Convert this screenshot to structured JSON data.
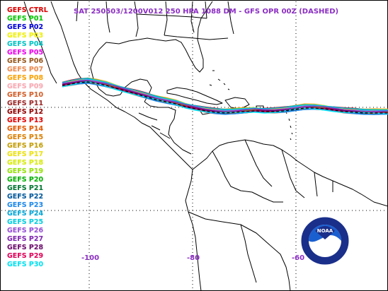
{
  "title": "SAT 250503/1200V012  250 HPA 1088 DM - GFS OPR 00Z (DASHED)",
  "colors": {
    "title": "#8b2ec4",
    "coastline": "#000000",
    "grid": "#000000",
    "lon_labels": "#8b2ec4",
    "opr": "#000000"
  },
  "legend": [
    {
      "label": "GEFS CTRL",
      "color": "#e00000"
    },
    {
      "label": "GEFS P01",
      "color": "#00cc00"
    },
    {
      "label": "GEFS P02",
      "color": "#0000e0"
    },
    {
      "label": "GEFS P03",
      "color": "#f5f500"
    },
    {
      "label": "GEFS P04",
      "color": "#00c8c8"
    },
    {
      "label": "GEFS P05",
      "color": "#f000f0"
    },
    {
      "label": "GEFS P06",
      "color": "#9a5a1e"
    },
    {
      "label": "GEFS P07",
      "color": "#f08c50"
    },
    {
      "label": "GEFS P08",
      "color": "#ffa500"
    },
    {
      "label": "GEFS P09",
      "color": "#ffaab4"
    },
    {
      "label": "GEFS P10",
      "color": "#d8602a"
    },
    {
      "label": "GEFS P11",
      "color": "#a02a2a"
    },
    {
      "label": "GEFS P12",
      "color": "#960000"
    },
    {
      "label": "GEFS P13",
      "color": "#e60000"
    },
    {
      "label": "GEFS P14",
      "color": "#e85a00"
    },
    {
      "label": "GEFS P15",
      "color": "#e08200"
    },
    {
      "label": "GEFS P16",
      "color": "#c8a000"
    },
    {
      "label": "GEFS P17",
      "color": "#f0e60a"
    },
    {
      "label": "GEFS P18",
      "color": "#dcf000"
    },
    {
      "label": "GEFS P19",
      "color": "#96e600"
    },
    {
      "label": "GEFS P20",
      "color": "#00b400"
    },
    {
      "label": "GEFS P21",
      "color": "#007832"
    },
    {
      "label": "GEFS P22",
      "color": "#005aa0"
    },
    {
      "label": "GEFS P23",
      "color": "#1e8cf0"
    },
    {
      "label": "GEFS P24",
      "color": "#00aadc"
    },
    {
      "label": "GEFS P25",
      "color": "#00d2e6"
    },
    {
      "label": "GEFS P26",
      "color": "#9a50dc"
    },
    {
      "label": "GEFS P27",
      "color": "#8228b4"
    },
    {
      "label": "GEFS P28",
      "color": "#6e0a6e"
    },
    {
      "label": "GEFS P29",
      "color": "#e6005a"
    },
    {
      "label": "GEFS P30",
      "color": "#00e6f5"
    }
  ],
  "longitude_labels": [
    "-100",
    "-80",
    "-60"
  ],
  "logo": {
    "text": "NOAA",
    "icon": "noaa-logo-icon"
  }
}
